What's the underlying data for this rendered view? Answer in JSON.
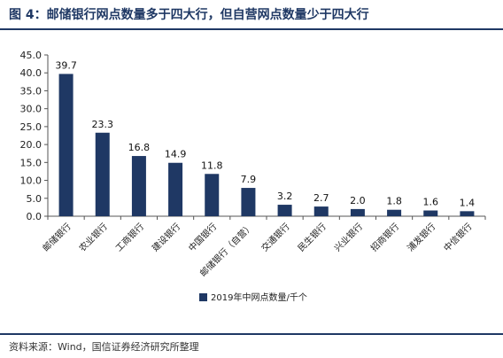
{
  "header": {
    "title": "图 4：邮储银行网点数量多于四大行，但自营网点数量少于四大行"
  },
  "footer": {
    "source": "资料来源：Wind，国信证券经济研究所整理"
  },
  "colors": {
    "bar": "#1f3864",
    "rule": "#1f3864"
  },
  "chart_data": {
    "type": "bar",
    "categories": [
      "邮储银行",
      "农业银行",
      "工商银行",
      "建设银行",
      "中国银行",
      "邮储银行（自营）",
      "交通银行",
      "民生银行",
      "兴业银行",
      "招商银行",
      "浦发银行",
      "中信银行"
    ],
    "series": [
      {
        "name": "2019年中网点数量/千个",
        "values": [
          39.7,
          23.3,
          16.8,
          14.9,
          11.8,
          7.9,
          3.2,
          2.7,
          2.0,
          1.8,
          1.6,
          1.4
        ]
      }
    ],
    "data_labels": [
      "39.7",
      "23.3",
      "16.8",
      "14.9",
      "11.8",
      "7.9",
      "3.2",
      "2.7",
      "2.0",
      "1.8",
      "1.6",
      "1.4"
    ],
    "yticks": [
      "0.0",
      "5.0",
      "10.0",
      "15.0",
      "20.0",
      "25.0",
      "30.0",
      "35.0",
      "40.0",
      "45.0"
    ],
    "ylim": [
      0,
      45
    ],
    "grid": false,
    "legend_position": "bottom"
  }
}
